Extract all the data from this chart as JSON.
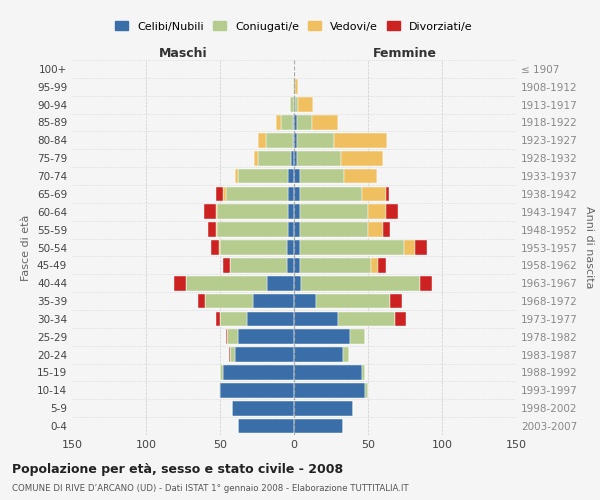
{
  "age_groups": [
    "0-4",
    "5-9",
    "10-14",
    "15-19",
    "20-24",
    "25-29",
    "30-34",
    "35-39",
    "40-44",
    "45-49",
    "50-54",
    "55-59",
    "60-64",
    "65-69",
    "70-74",
    "75-79",
    "80-84",
    "85-89",
    "90-94",
    "95-99",
    "100+"
  ],
  "birth_years": [
    "2003-2007",
    "1998-2002",
    "1993-1997",
    "1988-1992",
    "1983-1987",
    "1978-1982",
    "1973-1977",
    "1968-1972",
    "1963-1967",
    "1958-1962",
    "1953-1957",
    "1948-1952",
    "1943-1947",
    "1938-1942",
    "1933-1937",
    "1928-1932",
    "1923-1927",
    "1918-1922",
    "1913-1917",
    "1908-1912",
    "≤ 1907"
  ],
  "maschi_celibi": [
    38,
    42,
    50,
    48,
    40,
    38,
    32,
    28,
    18,
    5,
    5,
    4,
    4,
    4,
    4,
    2,
    1,
    1,
    0,
    0,
    0
  ],
  "maschi_coniugati": [
    0,
    0,
    1,
    2,
    3,
    7,
    18,
    32,
    55,
    38,
    45,
    48,
    48,
    42,
    34,
    22,
    18,
    8,
    3,
    1,
    0
  ],
  "maschi_vedovi": [
    0,
    0,
    0,
    0,
    0,
    0,
    0,
    0,
    0,
    0,
    1,
    1,
    1,
    2,
    2,
    3,
    5,
    3,
    0,
    0,
    0
  ],
  "maschi_divorziati": [
    0,
    0,
    0,
    0,
    1,
    1,
    3,
    5,
    8,
    5,
    5,
    5,
    8,
    5,
    0,
    0,
    0,
    0,
    0,
    0,
    0
  ],
  "femmine_nubili": [
    33,
    40,
    48,
    46,
    33,
    38,
    30,
    15,
    5,
    4,
    4,
    4,
    4,
    4,
    4,
    2,
    2,
    2,
    1,
    1,
    0
  ],
  "femmine_coniugate": [
    0,
    0,
    2,
    2,
    4,
    10,
    38,
    50,
    80,
    48,
    70,
    46,
    46,
    42,
    30,
    30,
    25,
    10,
    2,
    0,
    0
  ],
  "femmine_vedove": [
    0,
    0,
    0,
    0,
    0,
    0,
    0,
    0,
    0,
    5,
    8,
    10,
    12,
    16,
    22,
    28,
    36,
    18,
    10,
    2,
    0
  ],
  "femmine_divorziate": [
    0,
    0,
    0,
    0,
    0,
    0,
    8,
    8,
    8,
    5,
    8,
    5,
    8,
    2,
    0,
    0,
    0,
    0,
    0,
    0,
    0
  ],
  "colors": {
    "celibi": "#3a6ea8",
    "coniugati": "#b5cc8e",
    "vedovi": "#f0c060",
    "divorziati": "#cc2222"
  },
  "xlim": 150,
  "title": "Popolazione per età, sesso e stato civile - 2008",
  "subtitle": "COMUNE DI RIVE D’ARCANO (UD) - Dati ISTAT 1° gennaio 2008 - Elaborazione TUTTITALIA.IT",
  "ylabel_left": "Fasce di età",
  "ylabel_right": "Anni di nascita",
  "label_maschi": "Maschi",
  "label_femmine": "Femmine",
  "legend_labels": [
    "Celibi/Nubili",
    "Coniugati/e",
    "Vedovi/e",
    "Divorziati/e"
  ],
  "bg_color": "#f5f5f5",
  "grid_color": "#cccccc"
}
